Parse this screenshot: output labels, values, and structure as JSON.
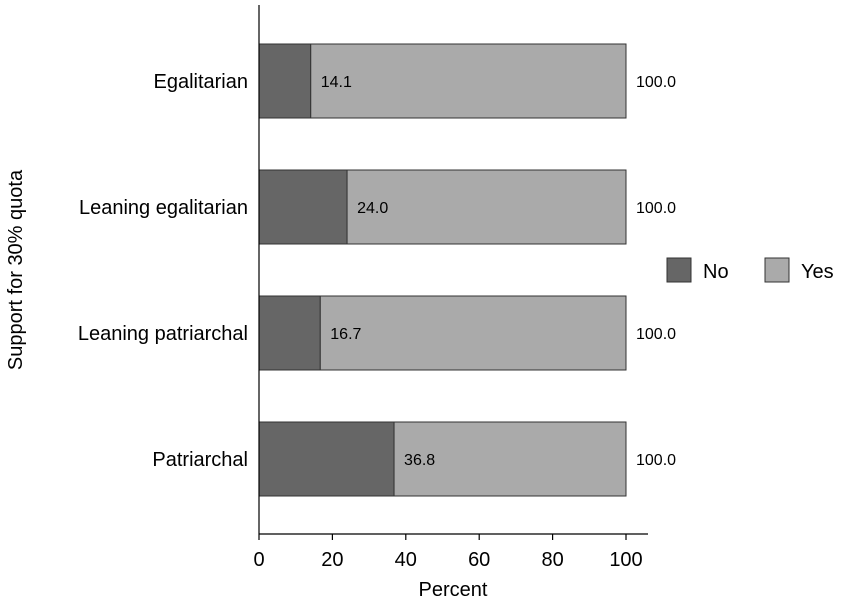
{
  "chart_data": {
    "type": "bar",
    "orientation": "horizontal",
    "stacked": true,
    "categories": [
      "Egalitarian",
      "Leaning egalitarian",
      "Leaning patriarchal",
      "Patriarchal"
    ],
    "series": [
      {
        "name": "No",
        "values": [
          14.1,
          24.0,
          16.7,
          36.8
        ],
        "color": "#666666"
      },
      {
        "name": "Yes",
        "values": [
          85.9,
          76.0,
          83.3,
          63.2
        ],
        "color": "#aaaaaa"
      }
    ],
    "bar_labels": [
      "14.1",
      "24.0",
      "16.7",
      "36.8"
    ],
    "total_labels": [
      "100.0",
      "100.0",
      "100.0",
      "100.0"
    ],
    "xlabel": "Percent",
    "ylabel": "Support for 30% quota",
    "xlim": [
      0,
      100
    ],
    "xticks": [
      0,
      20,
      40,
      60,
      80,
      100
    ],
    "grid": false,
    "legend_position": "right"
  }
}
